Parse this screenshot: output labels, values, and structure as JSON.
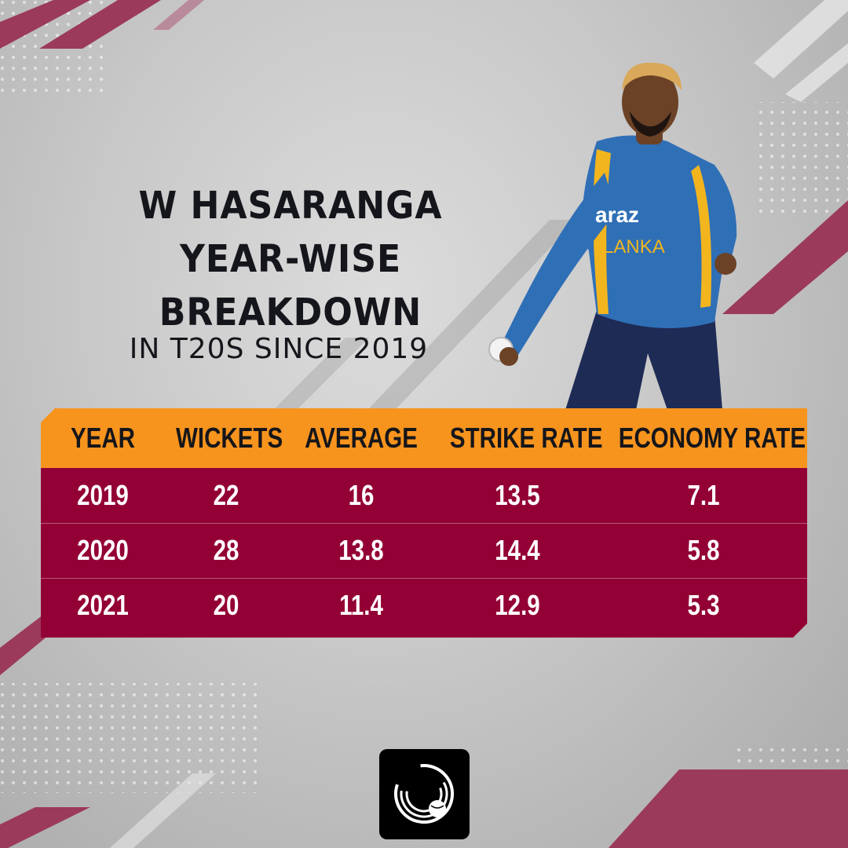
{
  "title_lines": [
    "W HASARANGA",
    "YEAR-WISE",
    "BREAKDOWN"
  ],
  "subtitle": "IN T20S SINCE 2019",
  "player_jersey": {
    "sponsor": "araz",
    "team": "LANKA"
  },
  "colors": {
    "header": "#f7941e",
    "rows": "#930035",
    "accent_stripe": "#9b3a5a",
    "text_dark": "#15161b"
  },
  "table": {
    "headers": [
      "YEAR",
      "WICKETS",
      "AVERAGE",
      "STRIKE RATE",
      "ECONOMY RATE"
    ],
    "rows": [
      [
        "2019",
        "22",
        "16",
        "13.5",
        "7.1"
      ],
      [
        "2020",
        "28",
        "13.8",
        "14.4",
        "5.8"
      ],
      [
        "2021",
        "20",
        "11.4",
        "12.9",
        "5.3"
      ]
    ]
  },
  "logo": {
    "icon": "cricket-ball-logo-icon"
  }
}
